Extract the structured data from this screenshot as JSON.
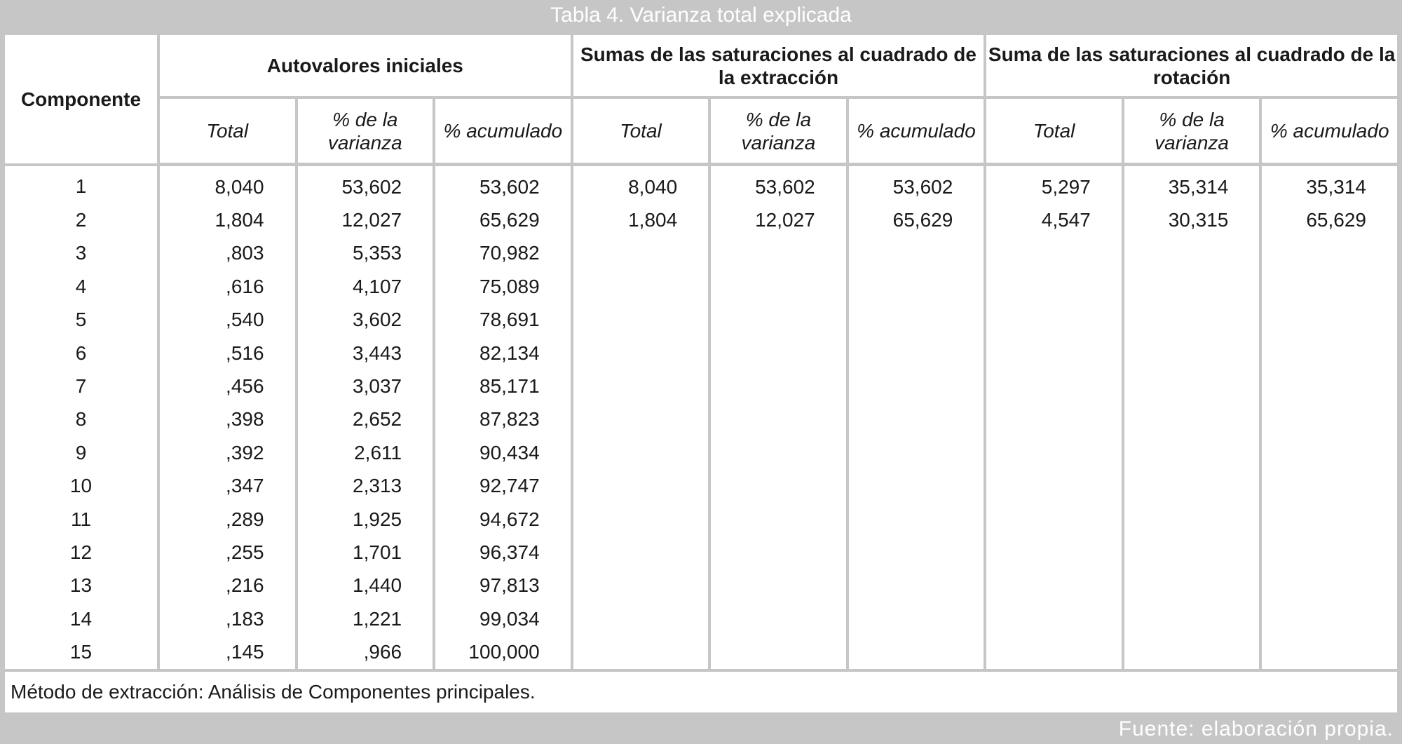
{
  "title": "Tabla 4. Varianza total explicada",
  "table": {
    "component_header": "Componente",
    "groups": [
      "Autovalores iniciales",
      "Sumas de las saturaciones al cuadrado de la extracción",
      "Suma de las saturaciones al cuadrado de la rotación"
    ],
    "subheaders": [
      "Total",
      "% de la varianza",
      "% acumulado",
      "Total",
      "% de la varianza",
      "% acumulado",
      "Total",
      "% de la varianza",
      "% acumulado"
    ],
    "rows": [
      [
        "1",
        "8,040",
        "53,602",
        "53,602",
        "8,040",
        "53,602",
        "53,602",
        "5,297",
        "35,314",
        "35,314"
      ],
      [
        "2",
        "1,804",
        "12,027",
        "65,629",
        "1,804",
        "12,027",
        "65,629",
        "4,547",
        "30,315",
        "65,629"
      ],
      [
        "3",
        ",803",
        "5,353",
        "70,982"
      ],
      [
        "4",
        ",616",
        "4,107",
        "75,089"
      ],
      [
        "5",
        ",540",
        "3,602",
        "78,691"
      ],
      [
        "6",
        ",516",
        "3,443",
        "82,134"
      ],
      [
        "7",
        ",456",
        "3,037",
        "85,171"
      ],
      [
        "8",
        ",398",
        "2,652",
        "87,823"
      ],
      [
        "9",
        ",392",
        "2,611",
        "90,434"
      ],
      [
        "10",
        ",347",
        "2,313",
        "92,747"
      ],
      [
        "11",
        ",289",
        "1,925",
        "94,672"
      ],
      [
        "12",
        ",255",
        "1,701",
        "96,374"
      ],
      [
        "13",
        ",216",
        "1,440",
        "97,813"
      ],
      [
        "14",
        ",183",
        "1,221",
        "99,034"
      ],
      [
        "15",
        ",145",
        ",966",
        "100,000"
      ]
    ],
    "note": "Método de extracción: Análisis de Componentes principales."
  },
  "source": "Fuente: elaboración propia."
}
